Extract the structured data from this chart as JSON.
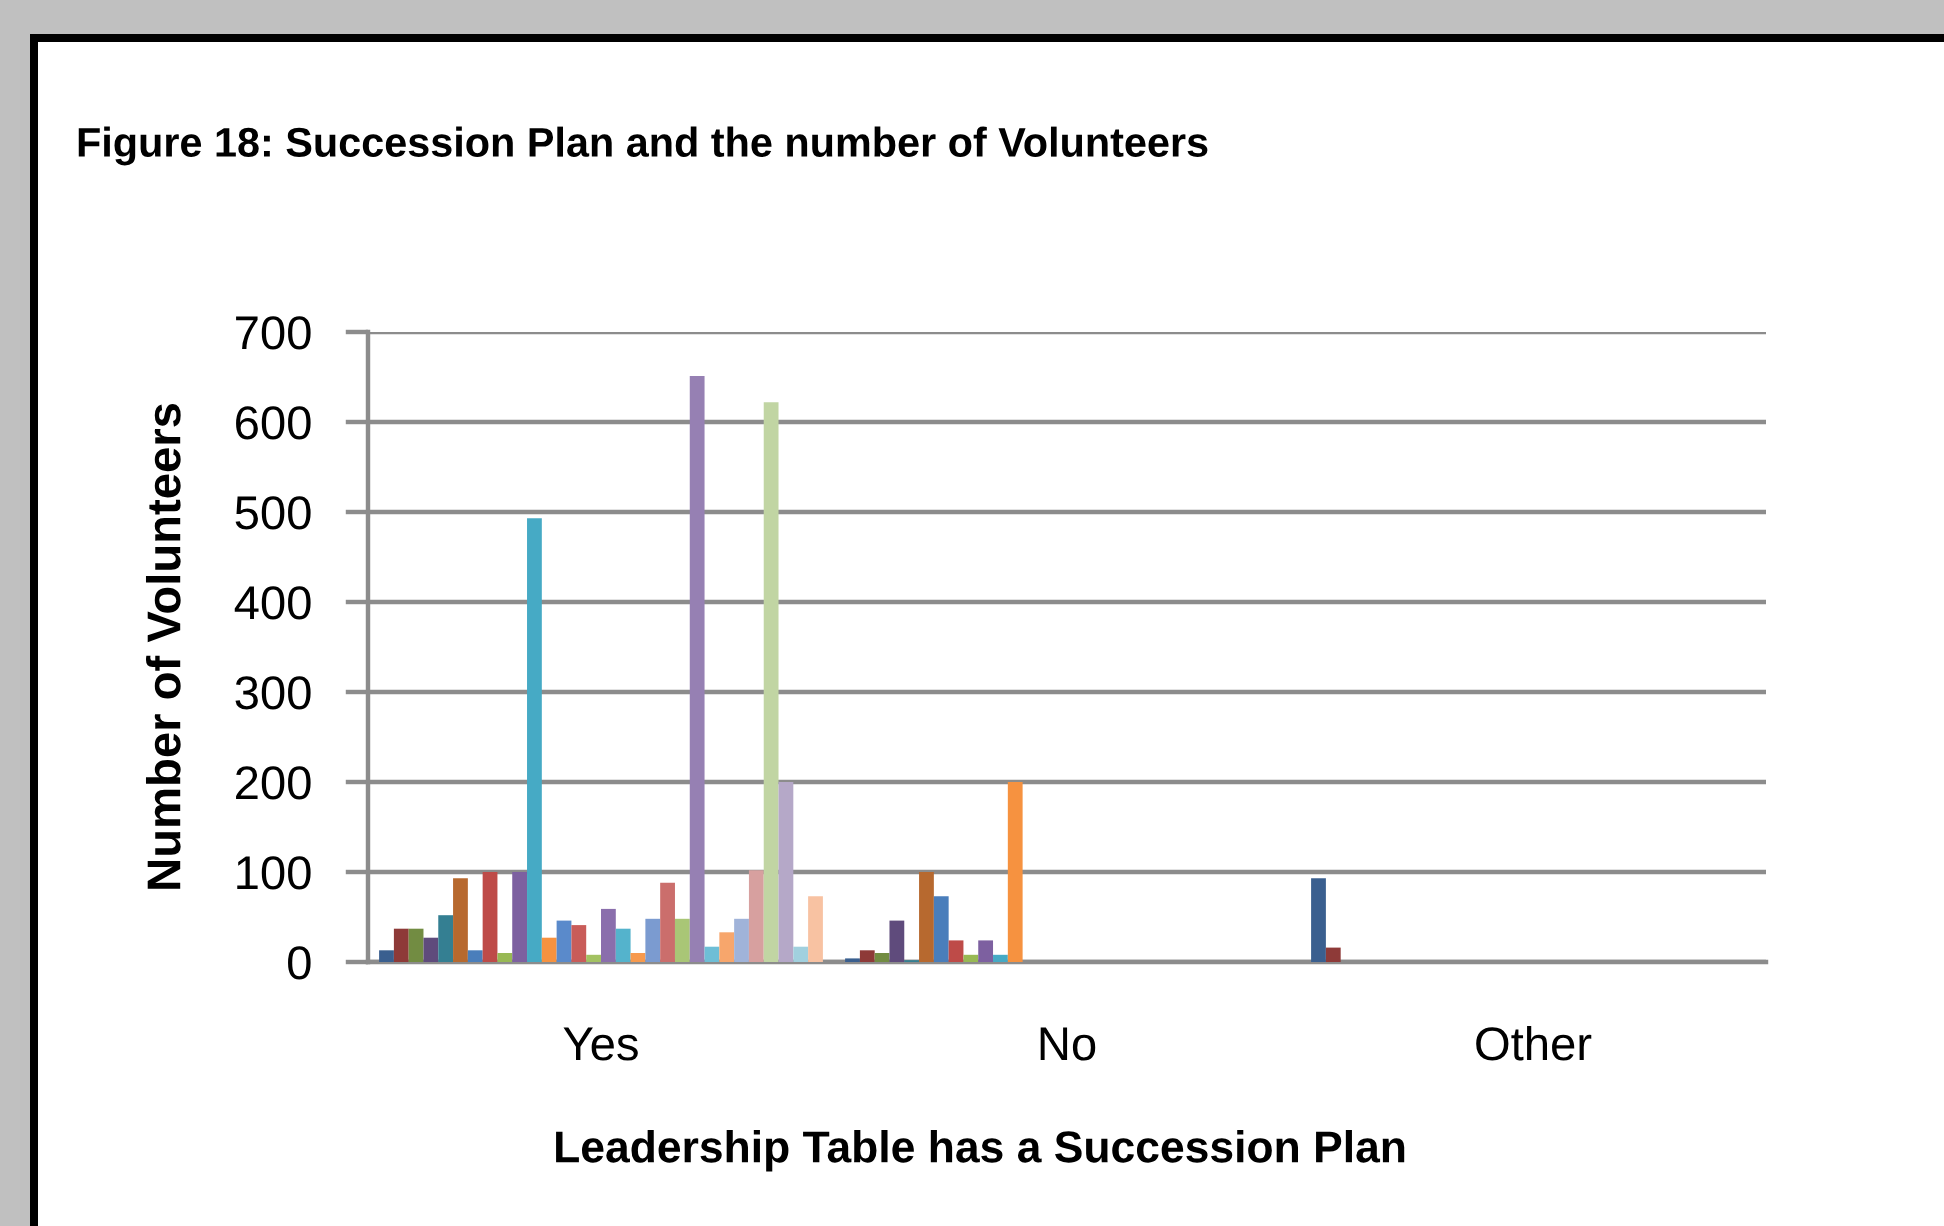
{
  "chart_data": {
    "type": "bar",
    "title": "Figure 18: Succession Plan and the number of Volunteers",
    "xlabel": "Leadership Table has a Succession Plan",
    "ylabel": "Number of Volunteers",
    "categories": [
      "Yes",
      "No",
      "Other"
    ],
    "ylim": [
      0,
      700
    ],
    "yticks": [
      0,
      100,
      200,
      300,
      400,
      500,
      600,
      700
    ],
    "grid": "y",
    "series": [
      {
        "color": "#3a5f8f",
        "values": [
          13,
          4,
          93
        ]
      },
      {
        "color": "#8e3a38",
        "values": [
          37,
          13,
          16
        ]
      },
      {
        "color": "#728c42",
        "values": [
          37,
          10,
          null
        ]
      },
      {
        "color": "#5f4b7c",
        "values": [
          27,
          46,
          null
        ]
      },
      {
        "color": "#347f92",
        "values": [
          52,
          2,
          null
        ]
      },
      {
        "color": "#b7692f",
        "values": [
          93,
          100,
          null
        ]
      },
      {
        "color": "#4a7ebb",
        "values": [
          13,
          73,
          null
        ]
      },
      {
        "color": "#be4b48",
        "values": [
          100,
          24,
          null
        ]
      },
      {
        "color": "#98b954",
        "values": [
          10,
          8,
          null
        ]
      },
      {
        "color": "#7d60a0",
        "values": [
          100,
          24,
          null
        ]
      },
      {
        "color": "#46aac5",
        "values": [
          493,
          8,
          null
        ]
      },
      {
        "color": "#f69240",
        "values": [
          27,
          200,
          null
        ]
      },
      {
        "color": "#5a8acb",
        "values": [
          46,
          null,
          null
        ]
      },
      {
        "color": "#c95c59",
        "values": [
          41,
          null,
          null
        ]
      },
      {
        "color": "#a3c262",
        "values": [
          8,
          null,
          null
        ]
      },
      {
        "color": "#8a6eac",
        "values": [
          59,
          null,
          null
        ]
      },
      {
        "color": "#54b3cc",
        "values": [
          37,
          null,
          null
        ]
      },
      {
        "color": "#f79a4e",
        "values": [
          10,
          null,
          null
        ]
      },
      {
        "color": "#7b9bd0",
        "values": [
          48,
          null,
          null
        ]
      },
      {
        "color": "#cb6e6c",
        "values": [
          88,
          null,
          null
        ]
      },
      {
        "color": "#a9c676",
        "values": [
          48,
          null,
          null
        ]
      },
      {
        "color": "#9680b3",
        "values": [
          651,
          null,
          null
        ]
      },
      {
        "color": "#6ebed6",
        "values": [
          17,
          null,
          null
        ]
      },
      {
        "color": "#f7a66c",
        "values": [
          33,
          null,
          null
        ]
      },
      {
        "color": "#a0b3d9",
        "values": [
          48,
          null,
          null
        ]
      },
      {
        "color": "#d7a09f",
        "values": [
          102,
          null,
          null
        ]
      },
      {
        "color": "#c1d5a3",
        "values": [
          622,
          null,
          null
        ]
      },
      {
        "color": "#b5a8c8",
        "values": [
          200,
          null,
          null
        ]
      },
      {
        "color": "#a1d0de",
        "values": [
          17,
          null,
          null
        ]
      },
      {
        "color": "#f8c2a2",
        "values": [
          73,
          null,
          null
        ]
      }
    ]
  }
}
